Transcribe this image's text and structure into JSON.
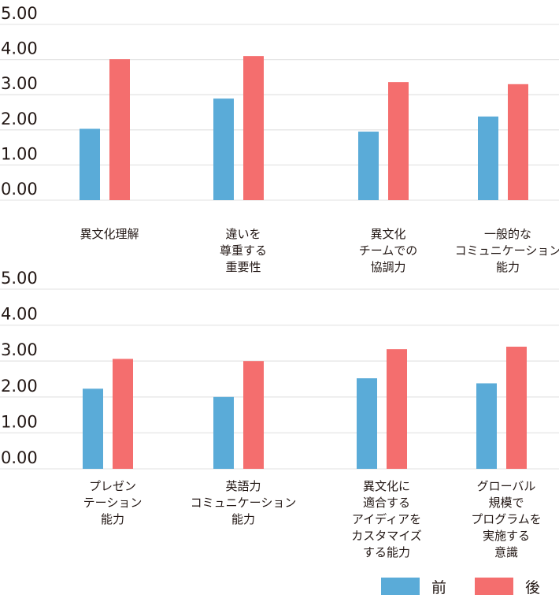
{
  "chart_data": [
    {
      "type": "bar",
      "categories": [
        [
          "異文化理解"
        ],
        [
          "違いを",
          "尊重する",
          "重要性"
        ],
        [
          "異文化",
          "チームでの",
          "協調力"
        ],
        [
          "一般的な",
          "コミュニケーション",
          "能力"
        ]
      ],
      "series": [
        {
          "name": "前",
          "values": [
            2.03,
            2.89,
            1.95,
            2.38
          ]
        },
        {
          "name": "後",
          "values": [
            4.01,
            4.1,
            3.36,
            3.3
          ]
        }
      ],
      "yticks": [
        "0.00",
        "1.00",
        "2.00",
        "3.00",
        "4.00",
        "5.00"
      ],
      "ylim": [
        0,
        5
      ],
      "grid": true
    },
    {
      "type": "bar",
      "categories": [
        [
          "プレゼン",
          "テーション",
          "能力"
        ],
        [
          "英語力",
          "コミュニケーション",
          "能力"
        ],
        [
          "異文化に",
          "適合する",
          "アイディアを",
          "カスタマイズ",
          "する能力"
        ],
        [
          "グローバル",
          "規模で",
          "プログラムを",
          "実施する",
          "意識"
        ]
      ],
      "series": [
        {
          "name": "前",
          "values": [
            2.23,
            2.0,
            2.52,
            2.38
          ]
        },
        {
          "name": "後",
          "values": [
            3.06,
            3.0,
            3.33,
            3.4
          ]
        }
      ],
      "yticks": [
        "0.00",
        "1.00",
        "2.00",
        "3.00",
        "4.00",
        "5.00"
      ],
      "ylim": [
        0,
        5
      ],
      "grid": true
    }
  ],
  "legend": {
    "position": "bottom-right",
    "items": [
      {
        "label": "前",
        "color": "#5aabd8"
      },
      {
        "label": "後",
        "color": "#f46e6e"
      }
    ]
  }
}
